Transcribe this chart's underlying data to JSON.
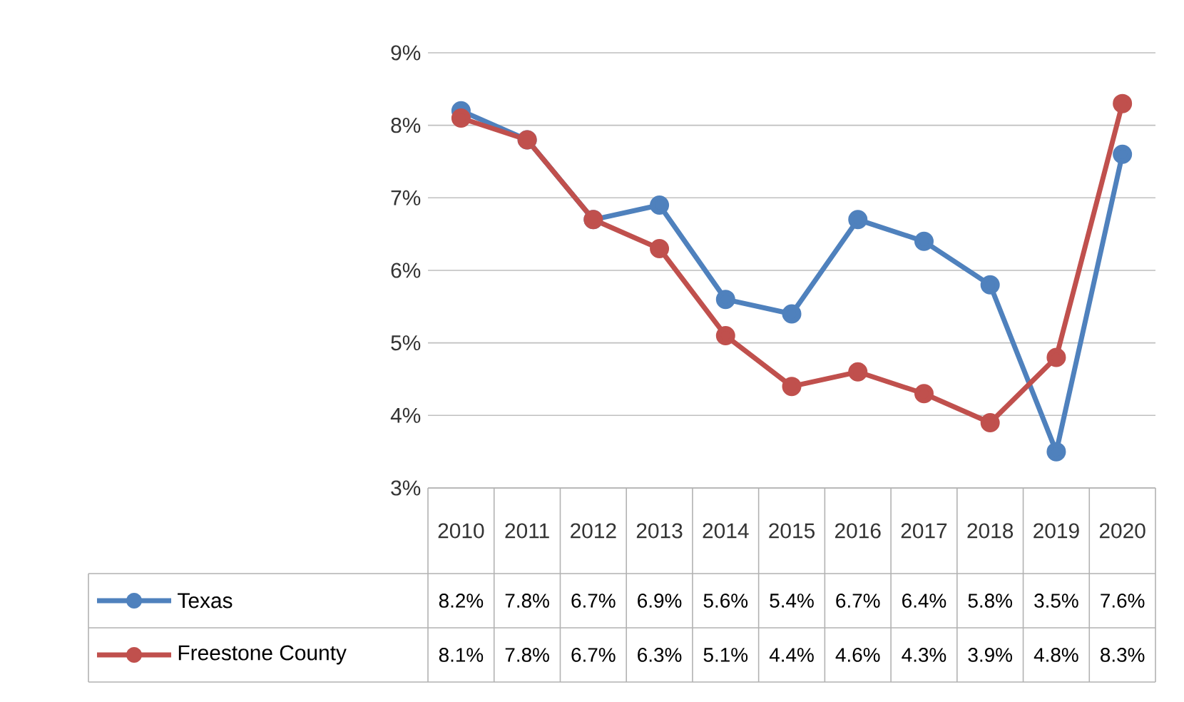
{
  "chart_data": {
    "type": "line",
    "categories": [
      "2010",
      "2011",
      "2012",
      "2013",
      "2014",
      "2015",
      "2016",
      "2017",
      "2018",
      "2019",
      "2020"
    ],
    "series": [
      {
        "name": "Texas",
        "color": "#4f81bd",
        "values": [
          8.2,
          7.8,
          6.7,
          6.9,
          5.6,
          5.4,
          6.7,
          6.4,
          5.8,
          3.5,
          7.6
        ],
        "value_labels": [
          "8.2%",
          "7.8%",
          "6.7%",
          "6.9%",
          "5.6%",
          "5.4%",
          "6.7%",
          "6.4%",
          "5.8%",
          "3.5%",
          "7.6%"
        ]
      },
      {
        "name": "Freestone County",
        "color": "#c0504d",
        "values": [
          8.1,
          7.8,
          6.7,
          6.3,
          5.1,
          4.4,
          4.6,
          4.3,
          3.9,
          4.8,
          8.3
        ],
        "value_labels": [
          "8.1%",
          "7.8%",
          "6.7%",
          "6.3%",
          "5.1%",
          "4.4%",
          "4.6%",
          "4.3%",
          "3.9%",
          "4.8%",
          "8.3%"
        ]
      }
    ],
    "ylim": [
      3,
      9
    ],
    "yticks": [
      {
        "value": 3,
        "label": "3%"
      },
      {
        "value": 4,
        "label": "4%"
      },
      {
        "value": 5,
        "label": "5%"
      },
      {
        "value": 6,
        "label": "6%"
      },
      {
        "value": 7,
        "label": "7%"
      },
      {
        "value": 8,
        "label": "8%"
      },
      {
        "value": 9,
        "label": "9%"
      }
    ],
    "grid": "y",
    "legend": "bottom",
    "marker": "circle",
    "line_style": "solid"
  }
}
